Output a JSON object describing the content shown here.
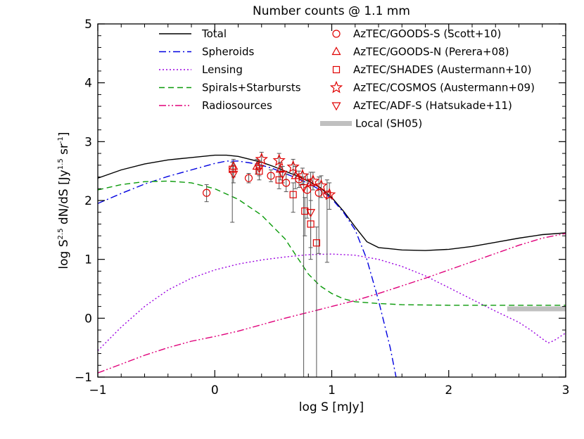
{
  "chart_data": {
    "type": "line",
    "title": "Number counts @ 1.1 mm",
    "xlabel": "log S [mJy]",
    "ylabel_parts": [
      "log S",
      "2.5",
      " dN/dS [Jy",
      "1.5",
      " sr",
      "-1",
      "]"
    ],
    "xlim": [
      -1,
      3
    ],
    "ylim": [
      -1,
      5
    ],
    "x_ticks": [
      "−1",
      "0",
      "1",
      "2",
      "3"
    ],
    "y_ticks": [
      "−1",
      "0",
      "1",
      "2",
      "3",
      "4",
      "5"
    ],
    "grid": false,
    "legend_placement": "top",
    "model_series": [
      {
        "name": "Total",
        "color": "#000000",
        "dash": "",
        "x": [
          -1,
          -0.8,
          -0.6,
          -0.4,
          -0.2,
          0,
          0.1,
          0.2,
          0.3,
          0.4,
          0.5,
          0.6,
          0.7,
          0.8,
          0.9,
          1.0,
          1.1,
          1.2,
          1.3,
          1.4,
          1.5,
          1.6,
          1.8,
          2.0,
          2.2,
          2.4,
          2.6,
          2.8,
          3.0
        ],
        "y": [
          2.38,
          2.52,
          2.62,
          2.69,
          2.73,
          2.77,
          2.77,
          2.75,
          2.7,
          2.65,
          2.58,
          2.5,
          2.42,
          2.33,
          2.22,
          2.05,
          1.82,
          1.55,
          1.3,
          1.2,
          1.18,
          1.16,
          1.15,
          1.17,
          1.22,
          1.29,
          1.36,
          1.42,
          1.45
        ]
      },
      {
        "name": "Spheroids",
        "color": "#0000e0",
        "dash": "10,4,2,4",
        "x": [
          -1,
          -0.8,
          -0.6,
          -0.4,
          -0.2,
          0,
          0.1,
          0.2,
          0.3,
          0.4,
          0.5,
          0.6,
          0.7,
          0.8,
          0.9,
          1.0,
          1.1,
          1.2,
          1.3,
          1.4,
          1.5,
          1.55,
          1.6
        ],
        "y": [
          1.95,
          2.12,
          2.28,
          2.41,
          2.52,
          2.63,
          2.67,
          2.67,
          2.64,
          2.6,
          2.54,
          2.46,
          2.38,
          2.29,
          2.18,
          2.03,
          1.8,
          1.5,
          1.0,
          0.3,
          -0.5,
          -1.0,
          -1.2
        ]
      },
      {
        "name": "Lensing",
        "color": "#9b00e0",
        "dash": "2,3",
        "x": [
          -1,
          -0.8,
          -0.6,
          -0.4,
          -0.2,
          0,
          0.2,
          0.4,
          0.6,
          0.8,
          1.0,
          1.2,
          1.4,
          1.6,
          1.8,
          2.0,
          2.2,
          2.4,
          2.6,
          2.7,
          2.8,
          2.85,
          2.9,
          3.0
        ],
        "y": [
          -0.55,
          -0.15,
          0.2,
          0.48,
          0.68,
          0.82,
          0.92,
          0.99,
          1.04,
          1.08,
          1.09,
          1.07,
          1.0,
          0.88,
          0.72,
          0.52,
          0.32,
          0.12,
          -0.07,
          -0.2,
          -0.35,
          -0.42,
          -0.38,
          -0.25
        ]
      },
      {
        "name": "Spirals+Starbursts",
        "color": "#0a9a0a",
        "dash": "8,5",
        "x": [
          -1,
          -0.8,
          -0.6,
          -0.4,
          -0.2,
          0,
          0.2,
          0.4,
          0.6,
          0.7,
          0.8,
          0.9,
          1.0,
          1.1,
          1.2,
          1.4,
          1.6,
          2.0,
          2.5,
          3.0
        ],
        "y": [
          2.18,
          2.27,
          2.32,
          2.33,
          2.3,
          2.2,
          2.02,
          1.75,
          1.35,
          1.05,
          0.75,
          0.55,
          0.42,
          0.33,
          0.28,
          0.25,
          0.23,
          0.22,
          0.22,
          0.22
        ]
      },
      {
        "name": "Radiosources",
        "color": "#e0007a",
        "dash": "10,3,2,3,2,3",
        "x": [
          -1,
          -0.8,
          -0.6,
          -0.4,
          -0.2,
          0,
          0.2,
          0.4,
          0.6,
          0.8,
          1.0,
          1.2,
          1.4,
          1.6,
          1.8,
          2.0,
          2.2,
          2.4,
          2.6,
          2.8,
          3.0
        ],
        "y": [
          -0.93,
          -0.78,
          -0.63,
          -0.5,
          -0.39,
          -0.31,
          -0.22,
          -0.11,
          0.0,
          0.1,
          0.2,
          0.3,
          0.42,
          0.55,
          0.68,
          0.82,
          0.96,
          1.1,
          1.24,
          1.36,
          1.44
        ]
      }
    ],
    "local_band": {
      "name": "Local (SH05)",
      "color": "#c0c0c0",
      "x": [
        2.5,
        3.0
      ],
      "y": 0.16
    },
    "observations": [
      {
        "name": "AzTEC/GOODS-S (Scott+10)",
        "marker": "circle",
        "color": "#e00000",
        "points": [
          {
            "x": -0.07,
            "y": 2.13,
            "ylo": 1.98,
            "yhi": 2.27
          },
          {
            "x": 0.29,
            "y": 2.38,
            "ylo": 2.3,
            "yhi": 2.46
          },
          {
            "x": 0.48,
            "y": 2.42,
            "ylo": 2.32,
            "yhi": 2.52
          },
          {
            "x": 0.61,
            "y": 2.3,
            "ylo": 2.15,
            "yhi": 2.45
          },
          {
            "x": 0.72,
            "y": 2.36,
            "ylo": 2.22,
            "yhi": 2.5
          },
          {
            "x": 0.79,
            "y": 2.18,
            "ylo": 1.7,
            "yhi": 2.45
          },
          {
            "x": 0.89,
            "y": 2.13,
            "ylo": 1.1,
            "yhi": 2.4
          },
          {
            "x": 0.96,
            "y": 2.1,
            "ylo": 0.95,
            "yhi": 2.35
          }
        ]
      },
      {
        "name": "AzTEC/GOODS-N (Perera+08)",
        "marker": "triangle",
        "color": "#e00000",
        "points": [
          {
            "x": 0.16,
            "y": 2.58,
            "ylo": 2.4,
            "yhi": 2.7
          },
          {
            "x": 0.36,
            "y": 2.58,
            "ylo": 2.45,
            "yhi": 2.7
          },
          {
            "x": 0.56,
            "y": 2.53,
            "ylo": 2.35,
            "yhi": 2.65
          },
          {
            "x": 0.69,
            "y": 2.42,
            "ylo": 2.2,
            "yhi": 2.58
          },
          {
            "x": 0.82,
            "y": 2.3,
            "ylo": 2.0,
            "yhi": 2.48
          }
        ]
      },
      {
        "name": "AzTEC/SHADES (Austermann+10)",
        "marker": "square",
        "color": "#e00000",
        "points": [
          {
            "x": 0.15,
            "y": 2.53,
            "ylo": 1.63,
            "yhi": 2.65
          },
          {
            "x": 0.38,
            "y": 2.5,
            "ylo": 2.35,
            "yhi": 2.65
          },
          {
            "x": 0.55,
            "y": 2.35,
            "ylo": 2.2,
            "yhi": 2.5
          },
          {
            "x": 0.67,
            "y": 2.1,
            "ylo": 1.8,
            "yhi": 2.3
          },
          {
            "x": 0.77,
            "y": 1.82,
            "ylo": 1.4,
            "yhi": 2.05
          },
          {
            "x": 0.82,
            "y": 1.6,
            "ylo": 1.0,
            "yhi": 1.85
          },
          {
            "x": 0.87,
            "y": 1.28,
            "ylo": -1.0,
            "yhi": 1.55
          }
        ]
      },
      {
        "name": "AzTEC/COSMOS (Austermann+09)",
        "marker": "star",
        "color": "#e00000",
        "points": [
          {
            "x": 0.4,
            "y": 2.7,
            "ylo": 2.58,
            "yhi": 2.82
          },
          {
            "x": 0.55,
            "y": 2.68,
            "ylo": 2.55,
            "yhi": 2.8
          },
          {
            "x": 0.67,
            "y": 2.57,
            "ylo": 2.45,
            "yhi": 2.7
          },
          {
            "x": 0.75,
            "y": 2.42,
            "ylo": 2.28,
            "yhi": 2.55
          },
          {
            "x": 0.84,
            "y": 2.33,
            "ylo": 2.18,
            "yhi": 2.48
          },
          {
            "x": 0.91,
            "y": 2.25,
            "ylo": 2.05,
            "yhi": 2.42
          },
          {
            "x": 0.98,
            "y": 2.1,
            "ylo": 1.85,
            "yhi": 2.3
          }
        ]
      },
      {
        "name": "AzTEC/ADF-S (Hatsukade+11)",
        "marker": "triangle-down",
        "color": "#e00000",
        "points": [
          {
            "x": 0.16,
            "y": 2.45,
            "ylo": 2.3,
            "yhi": 2.6
          },
          {
            "x": 0.38,
            "y": 2.55,
            "ylo": 2.42,
            "yhi": 2.68
          },
          {
            "x": 0.58,
            "y": 2.45,
            "ylo": 2.3,
            "yhi": 2.58
          },
          {
            "x": 0.76,
            "y": 2.22,
            "ylo": -1.0,
            "yhi": 2.4
          },
          {
            "x": 0.82,
            "y": 1.8,
            "ylo": 1.2,
            "yhi": 2.0
          }
        ]
      }
    ]
  }
}
